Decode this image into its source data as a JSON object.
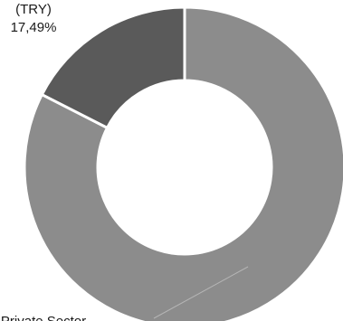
{
  "chart_data": {
    "type": "pie",
    "variant": "donut",
    "slices": [
      {
        "label_lines": [
          "(TRY)",
          "17,49%"
        ],
        "label_visible_text": "(TRY) 17,49%",
        "value": 17.49,
        "color": "#5a5a5a"
      },
      {
        "label_lines": [
          "Private Sector"
        ],
        "label_visible_text": "ivate Sector",
        "value": 82.51,
        "color": "#8c8c8c"
      }
    ],
    "border_color": "#ffffff",
    "label_color": "#1a1a1a",
    "leader_line_color": "#b5b5b5"
  }
}
